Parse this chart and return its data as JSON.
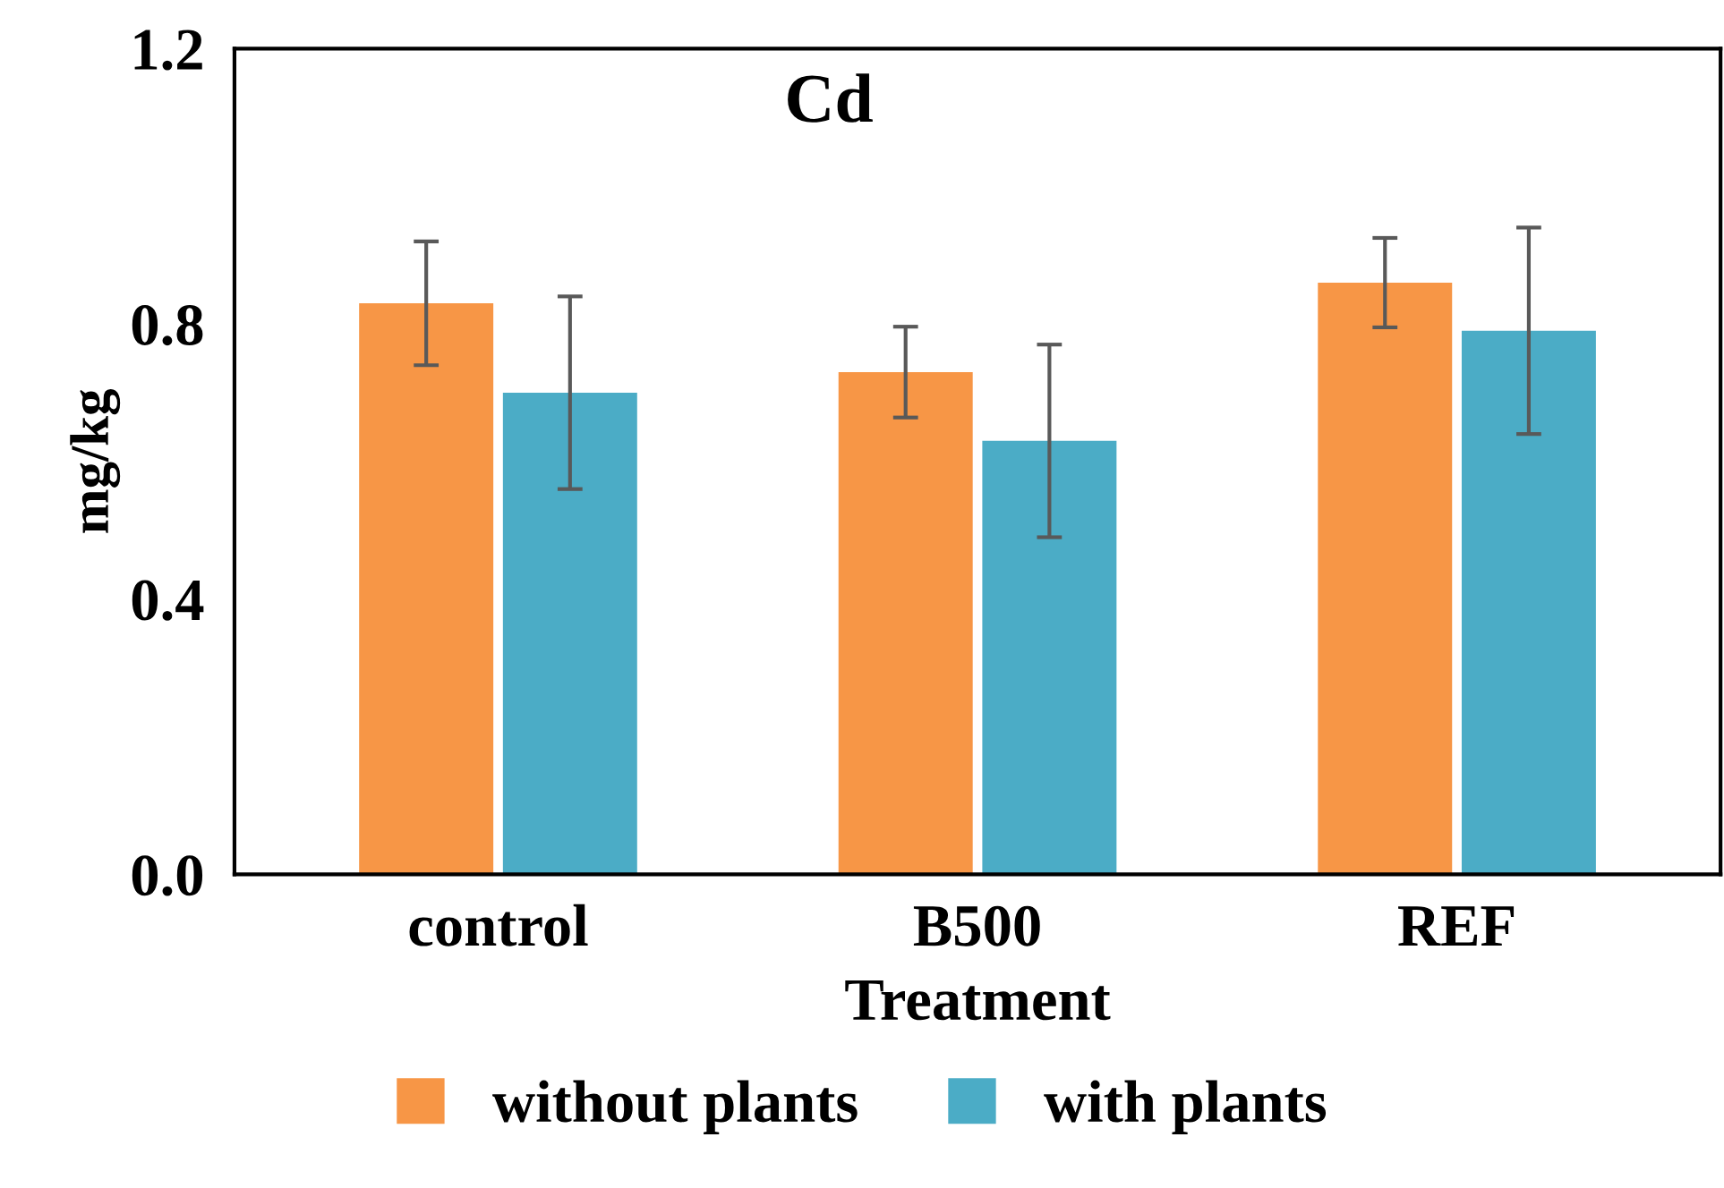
{
  "chart_data": {
    "type": "bar",
    "title": "Cd",
    "xlabel": "Treatment",
    "ylabel": "mg/kg",
    "categories": [
      "control",
      "B500",
      "REF"
    ],
    "series": [
      {
        "name": "without plants",
        "color": "#f79646",
        "values": [
          0.83,
          0.73,
          0.86
        ],
        "errors": [
          0.09,
          0.066,
          0.065
        ]
      },
      {
        "name": "with plants",
        "color": "#4bacc6",
        "values": [
          0.7,
          0.63,
          0.79
        ],
        "errors": [
          0.14,
          0.14,
          0.15
        ]
      }
    ],
    "ylim": [
      0,
      1.2
    ],
    "yticks": [
      {
        "value": 0,
        "label": "0.0"
      },
      0.4,
      0.8,
      1.2
    ],
    "grid": false,
    "legend": "bottom"
  }
}
